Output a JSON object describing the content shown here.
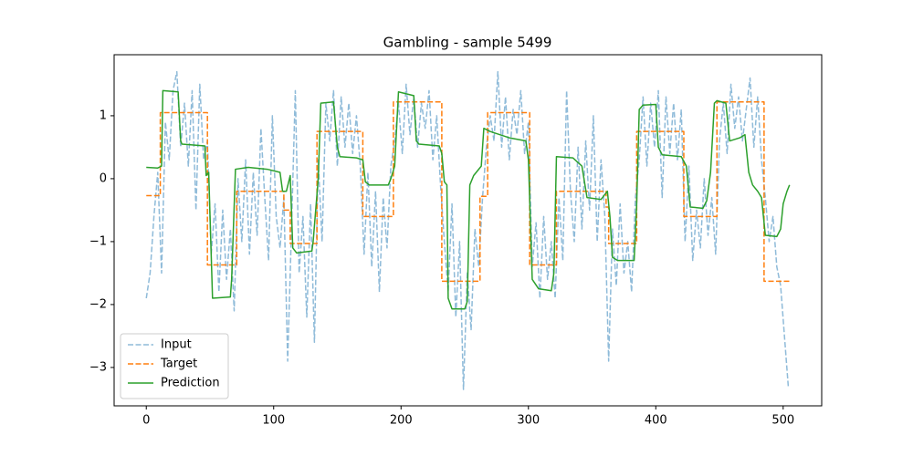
{
  "chart_data": {
    "type": "line",
    "title": "Gambling - sample 5499",
    "xlim": [
      -25.25,
      530.25
    ],
    "ylim": [
      -3.61,
      1.97
    ],
    "xticks": [
      0,
      100,
      200,
      300,
      400,
      500
    ],
    "yticks": [
      {
        "value": -3,
        "label": "−3"
      },
      {
        "value": -2,
        "label": "−2"
      },
      {
        "value": -1,
        "label": "−1"
      },
      0,
      1
    ],
    "legend": "lower left",
    "series": [
      {
        "name": "Input",
        "color": "#1f77b4",
        "style": "dashed",
        "x": [
          0,
          3,
          6,
          9,
          12,
          15,
          18,
          21,
          24,
          27,
          30,
          33,
          36,
          39,
          42,
          45,
          48,
          51,
          54,
          57,
          60,
          63,
          66,
          69,
          72,
          75,
          78,
          81,
          84,
          87,
          90,
          93,
          96,
          99,
          102,
          105,
          108,
          111,
          114,
          117,
          120,
          123,
          126,
          129,
          132,
          135,
          138,
          141,
          144,
          147,
          150,
          153,
          156,
          159,
          162,
          165,
          168,
          171,
          174,
          177,
          180,
          183,
          186,
          189,
          192,
          195,
          198,
          201,
          204,
          207,
          210,
          213,
          216,
          219,
          222,
          225,
          228,
          231,
          234,
          237,
          240,
          243,
          246,
          249,
          252,
          255,
          258,
          261,
          264,
          267,
          270,
          273,
          276,
          279,
          282,
          285,
          288,
          291,
          294,
          297,
          300,
          303,
          306,
          309,
          312,
          315,
          318,
          321,
          324,
          327,
          330,
          333,
          336,
          339,
          342,
          345,
          348,
          351,
          354,
          357,
          360,
          363,
          366,
          369,
          372,
          375,
          378,
          381,
          384,
          387,
          390,
          393,
          396,
          399,
          402,
          405,
          408,
          411,
          414,
          417,
          420,
          423,
          426,
          429,
          432,
          435,
          438,
          441,
          444,
          447,
          450,
          453,
          456,
          459,
          462,
          465,
          468,
          471,
          474,
          477,
          480,
          483,
          486,
          489,
          492,
          495,
          498,
          501,
          504
        ],
        "values": [
          -1.9,
          -1.5,
          -0.6,
          0.1,
          -1.5,
          0.9,
          0.3,
          1.4,
          1.7,
          0.5,
          1.2,
          0.2,
          1.4,
          -0.5,
          1.5,
          0.3,
          0.6,
          -1.2,
          -0.4,
          -1.8,
          -0.5,
          -1.6,
          -0.8,
          -2.1,
          0.0,
          -1.0,
          0.3,
          -1.2,
          0.1,
          -0.9,
          0.8,
          -0.3,
          -1.3,
          1.0,
          -0.6,
          -1.1,
          -0.3,
          -2.9,
          -0.8,
          1.4,
          -1.5,
          -0.6,
          -2.2,
          -0.4,
          -2.6,
          0.3,
          -1.0,
          1.2,
          0.6,
          1.4,
          0.2,
          1.3,
          0.5,
          1.2,
          0.4,
          1.0,
          0.2,
          -1.2,
          0.1,
          -1.4,
          -0.2,
          -1.8,
          -0.3,
          -1.1,
          0.2,
          0.6,
          1.2,
          0.4,
          1.5,
          0.7,
          1.3,
          0.5,
          1.2,
          0.8,
          1.4,
          0.3,
          1.0,
          -0.1,
          -1.0,
          -1.8,
          -0.4,
          -2.2,
          -1.0,
          -3.35,
          -1.5,
          -2.4,
          -0.8,
          -1.4,
          -0.3,
          0.5,
          1.0,
          0.6,
          1.7,
          0.5,
          1.3,
          0.3,
          1.1,
          0.7,
          1.4,
          0.4,
          0.9,
          -1.4,
          -0.7,
          -1.9,
          -0.6,
          -1.6,
          -1.0,
          -1.9,
          -0.3,
          -1.3,
          1.4,
          -0.2,
          -1.0,
          0.5,
          -0.8,
          0.6,
          -0.5,
          1.0,
          -1.0,
          0.3,
          -0.6,
          -2.9,
          -0.8,
          -1.7,
          -0.4,
          -1.5,
          -1.0,
          -1.8,
          -0.3,
          0.3,
          1.3,
          0.2,
          1.2,
          0.5,
          1.4,
          -0.3,
          1.3,
          0.4,
          1.2,
          0.3,
          1.1,
          -1.0,
          0.2,
          -1.3,
          -0.5,
          -1.1,
          0.0,
          -0.9,
          -0.3,
          -1.2,
          0.6,
          1.2,
          0.4,
          1.5,
          0.8,
          1.3,
          0.6,
          1.1,
          1.6,
          0.5,
          1.3,
          0.3,
          -0.3,
          -1.0,
          -0.6,
          -1.4,
          -1.7,
          -2.5,
          -3.3
        ]
      },
      {
        "name": "Target",
        "color": "#ff7f0e",
        "style": "dashed",
        "x": [
          0,
          11,
          11,
          48,
          48,
          71,
          71,
          108,
          108,
          113,
          113,
          134,
          134,
          170,
          170,
          194,
          194,
          232,
          232,
          262,
          262,
          268,
          268,
          301,
          301,
          322,
          322,
          361,
          361,
          363,
          363,
          385,
          385,
          422,
          422,
          448,
          448,
          485,
          485,
          505
        ],
        "values": [
          -0.27,
          -0.27,
          1.05,
          1.05,
          -1.37,
          -1.37,
          -0.2,
          -0.2,
          -0.5,
          -0.5,
          -1.03,
          -1.03,
          0.75,
          0.75,
          -0.6,
          -0.6,
          1.22,
          1.22,
          -1.63,
          -1.63,
          -0.28,
          -0.28,
          1.05,
          1.05,
          -1.37,
          -1.37,
          -0.2,
          -0.2,
          -0.45,
          -0.45,
          -1.03,
          -1.03,
          0.75,
          0.75,
          -0.6,
          -0.6,
          1.22,
          1.22,
          -1.63,
          -1.63
        ]
      },
      {
        "name": "Prediction",
        "color": "#2ca02c",
        "style": "solid",
        "x": [
          0,
          9,
          12,
          13,
          25,
          27,
          28,
          46,
          47,
          49,
          52,
          66,
          67,
          70,
          80,
          95,
          105,
          107,
          110,
          113,
          115,
          118,
          130,
          131,
          135,
          137,
          147,
          150,
          152,
          165,
          170,
          172,
          175,
          190,
          192,
          195,
          198,
          210,
          212,
          214,
          230,
          232,
          234,
          236,
          237,
          240,
          250,
          252,
          254,
          257,
          263,
          265,
          270,
          285,
          298,
          300,
          303,
          308,
          318,
          320,
          322,
          335,
          342,
          346,
          357,
          362,
          364,
          366,
          370,
          383,
          385,
          387,
          390,
          400,
          402,
          405,
          420,
          424,
          427,
          437,
          440,
          443,
          446,
          448,
          455,
          458,
          466,
          470,
          473,
          476,
          480,
          483,
          486,
          495,
          498,
          500,
          503,
          505
        ],
        "values": [
          0.18,
          0.17,
          0.2,
          1.4,
          1.38,
          0.6,
          0.55,
          0.52,
          0.05,
          0.1,
          -1.9,
          -1.88,
          -1.6,
          0.15,
          0.18,
          0.15,
          0.1,
          -0.2,
          -0.2,
          0.05,
          -1.1,
          -1.18,
          -1.15,
          -1.0,
          0.0,
          1.2,
          1.22,
          0.5,
          0.35,
          0.33,
          0.3,
          -0.05,
          -0.1,
          -0.1,
          0.0,
          0.2,
          1.38,
          1.32,
          0.6,
          0.55,
          0.52,
          0.4,
          -0.05,
          -0.1,
          -1.9,
          -2.07,
          -2.07,
          -1.95,
          -0.1,
          0.05,
          0.2,
          0.8,
          0.75,
          0.65,
          0.6,
          0.3,
          -1.6,
          -1.75,
          -1.78,
          -1.5,
          0.35,
          0.33,
          0.2,
          -0.3,
          -0.33,
          -0.2,
          -0.6,
          -1.25,
          -1.3,
          -1.3,
          -0.4,
          1.1,
          1.17,
          1.18,
          0.5,
          0.38,
          0.35,
          0.2,
          -0.45,
          -0.47,
          -0.35,
          0.1,
          1.2,
          1.24,
          1.2,
          0.6,
          0.65,
          0.7,
          0.1,
          -0.1,
          -0.2,
          -0.3,
          -0.9,
          -0.92,
          -0.8,
          -0.4,
          -0.2,
          -0.1
        ]
      }
    ]
  }
}
